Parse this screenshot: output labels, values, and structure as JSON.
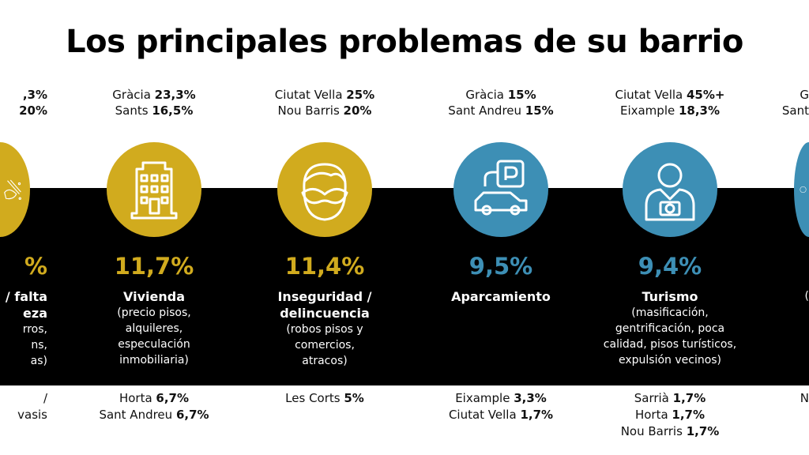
{
  "title": "Los principales problemas de su barrio",
  "colors": {
    "yellow": "#d1ab1e",
    "blue": "#3d8fb5",
    "band": "#000000"
  },
  "columns": [
    {
      "partial": "left",
      "color": "yellow",
      "icon": "cleaning-broom-icon",
      "top": [
        {
          "name": "",
          "value": ",3%"
        },
        {
          "name": "",
          "value": "20%"
        }
      ],
      "percent": "%",
      "label": [
        "/ falta",
        "eza"
      ],
      "description": [
        "rros,",
        "ns,",
        "as)"
      ],
      "bottom": [
        {
          "name": "/",
          "value": ""
        },
        {
          "name": "vasis",
          "value": ""
        }
      ]
    },
    {
      "color": "yellow",
      "icon": "building-icon",
      "top": [
        {
          "name": "Gràcia ",
          "value": "23,3%"
        },
        {
          "name": "Sants ",
          "value": "16,5%"
        }
      ],
      "percent": "11,7%",
      "label": [
        "Vivienda"
      ],
      "description": [
        "(precio pisos,",
        "alquileres,",
        "especulación",
        "inmobiliaria)"
      ],
      "bottom": [
        {
          "name": "Horta ",
          "value": "6,7%"
        },
        {
          "name": "Sant Andreu ",
          "value": "6,7%"
        }
      ]
    },
    {
      "color": "yellow",
      "icon": "masked-thief-icon",
      "top": [
        {
          "name": "Ciutat Vella ",
          "value": "25%"
        },
        {
          "name": "Nou Barris ",
          "value": "20%"
        }
      ],
      "percent": "11,4%",
      "label": [
        "Inseguridad /",
        "delincuencia"
      ],
      "description": [
        "(robos pisos y",
        "comercios,",
        "atracos)"
      ],
      "bottom": [
        {
          "name": "Les Corts ",
          "value": "5%"
        }
      ]
    },
    {
      "color": "blue",
      "icon": "parking-car-icon",
      "top": [
        {
          "name": "Gràcia ",
          "value": "15%"
        },
        {
          "name": "Sant Andreu ",
          "value": "15%"
        }
      ],
      "percent": "9,5%",
      "label": [
        "Aparcamiento"
      ],
      "description": [],
      "bottom": [
        {
          "name": "Eixample ",
          "value": "3,3%"
        },
        {
          "name": "Ciutat Vella ",
          "value": "1,7%"
        }
      ]
    },
    {
      "color": "blue",
      "icon": "tourist-camera-icon",
      "top": [
        {
          "name": "Ciutat Vella ",
          "value": "45%+"
        },
        {
          "name": "Eixample ",
          "value": "18,3%"
        }
      ],
      "percent": "9,4%",
      "label": [
        "Turismo"
      ],
      "description": [
        "(masificación,",
        "gentrificación, poca",
        "calidad, pisos turísticos,",
        "expulsión vecinos)"
      ],
      "bottom": [
        {
          "name": "Sarrià ",
          "value": "1,7%"
        },
        {
          "name": "Horta ",
          "value": "1,7%"
        },
        {
          "name": "Nou Barris ",
          "value": "1,7%"
        }
      ]
    },
    {
      "partial": "right",
      "color": "blue",
      "icon": "partial-icon",
      "top": [
        {
          "name": "G",
          "value": ""
        },
        {
          "name": "Sant",
          "value": ""
        }
      ],
      "percent": "",
      "label": [],
      "description": [
        "("
      ],
      "bottom": [
        {
          "name": "N",
          "value": ""
        }
      ]
    }
  ]
}
